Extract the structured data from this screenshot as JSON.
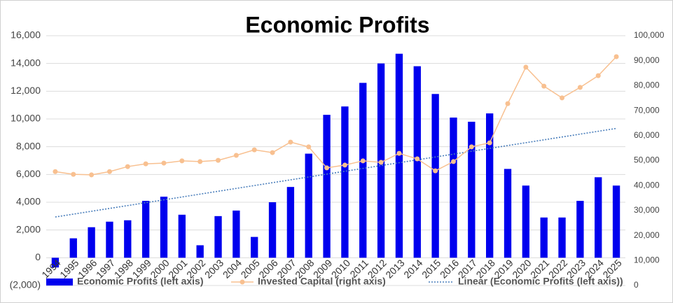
{
  "chart_data": {
    "type": "bar",
    "title": "Economic Profits",
    "categories": [
      "1994",
      "1995",
      "1996",
      "1997",
      "1998",
      "1999",
      "2000",
      "2001",
      "2002",
      "2003",
      "2004",
      "2005",
      "2006",
      "2007",
      "2008",
      "2009",
      "2010",
      "2011",
      "2012",
      "2013",
      "2014",
      "2015",
      "2016",
      "2017",
      "2018",
      "2019",
      "2020",
      "2021",
      "2022",
      "2023",
      "2024",
      "2025"
    ],
    "series": [
      {
        "name": "Economic Profits (left axis)",
        "color": "#0000ee",
        "values": [
          -700,
          1400,
          2200,
          2600,
          2700,
          4100,
          4400,
          3100,
          900,
          3000,
          3400,
          1500,
          4000,
          5100,
          7500,
          10300,
          10900,
          12600,
          14000,
          14700,
          13800,
          11800,
          10100,
          9800,
          10400,
          6400,
          5200,
          2900,
          2900,
          4100,
          5800,
          5200
        ]
      },
      {
        "name": "Invested Capital (right axis)",
        "color": "#f8c090",
        "axis": "y2",
        "values": [
          45600,
          44500,
          44300,
          45600,
          47600,
          48700,
          49000,
          49900,
          49600,
          50100,
          52100,
          54300,
          53200,
          57400,
          55500,
          47100,
          48200,
          49900,
          49300,
          52900,
          50700,
          45900,
          49600,
          55500,
          57100,
          72800,
          87400,
          79800,
          75100,
          79300,
          84000,
          91600
        ]
      },
      {
        "name": "Linear (Economic Profits (left axis))",
        "color": "#4a7ebb"
      }
    ],
    "ylim": [
      -2000,
      16000
    ],
    "yticks": [
      {
        "value": -2000,
        "label": "(2,000)"
      },
      0,
      {
        "value": 2000,
        "label": "2,000"
      },
      {
        "value": 4000,
        "label": "4,000"
      },
      {
        "value": 6000,
        "label": "6,000"
      },
      {
        "value": 8000,
        "label": "8,000"
      },
      {
        "value": 10000,
        "label": "10,000"
      },
      {
        "value": 12000,
        "label": "12,000"
      },
      {
        "value": 14000,
        "label": "14,000"
      },
      {
        "value": 16000,
        "label": "16,000"
      }
    ],
    "y2lim": [
      0,
      100000
    ],
    "y2ticks": [
      0,
      {
        "value": 10000,
        "label": "10,000"
      },
      {
        "value": 20000,
        "label": "20,000"
      },
      {
        "value": 30000,
        "label": "30,000"
      },
      {
        "value": 40000,
        "label": "40,000"
      },
      {
        "value": 50000,
        "label": "50,000"
      },
      {
        "value": 60000,
        "label": "60,000"
      },
      {
        "value": 70000,
        "label": "70,000"
      },
      {
        "value": 80000,
        "label": "80,000"
      },
      {
        "value": 90000,
        "label": "90,000"
      },
      {
        "value": 100000,
        "label": "100,000"
      }
    ],
    "grid": true,
    "legend": "bottom"
  }
}
